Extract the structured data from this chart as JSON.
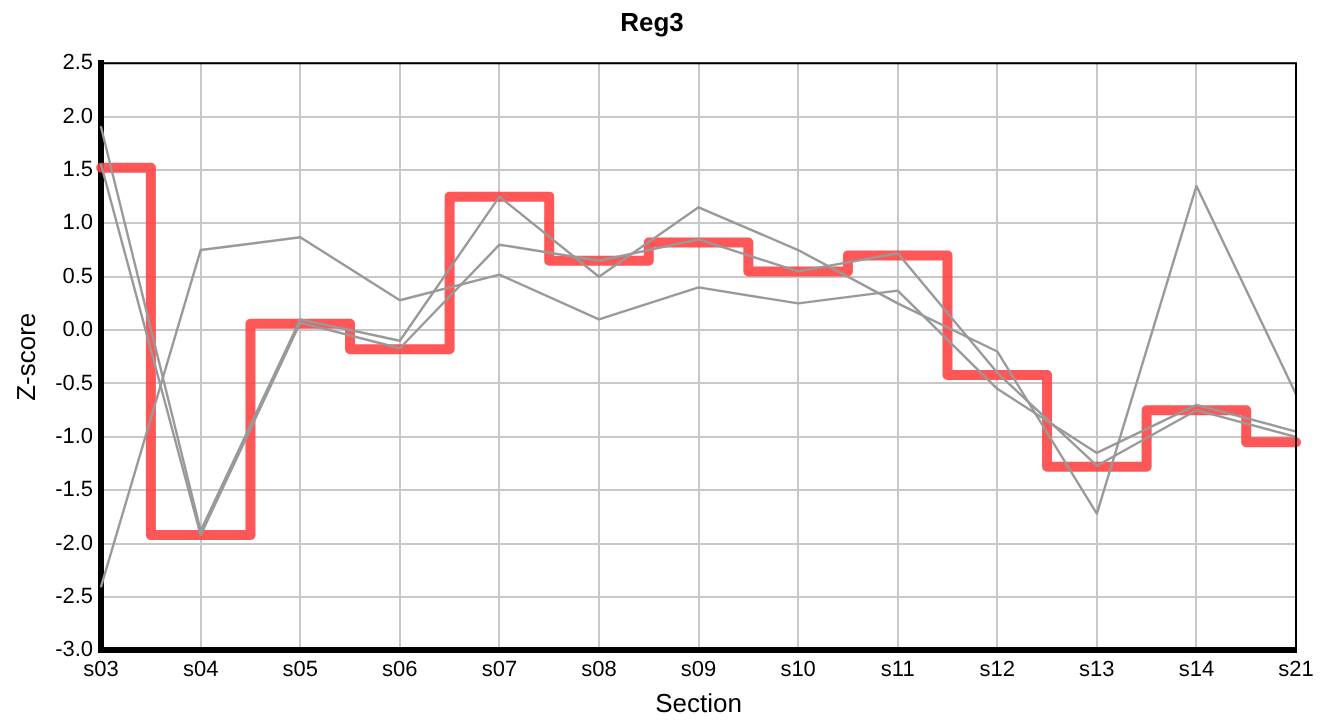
{
  "chart_data": {
    "type": "line",
    "title": "Reg3",
    "xlabel": "Section",
    "ylabel": "Z-score",
    "categories": [
      "s03",
      "s04",
      "s05",
      "s06",
      "s07",
      "s08",
      "s09",
      "s10",
      "s11",
      "s12",
      "s13",
      "s14",
      "s21"
    ],
    "series": [
      {
        "type": "line",
        "color": "#999999",
        "values": [
          -2.4,
          0.75,
          0.87,
          0.28,
          0.52,
          0.1,
          0.4,
          0.25,
          0.37,
          -0.55,
          -1.15,
          -0.7,
          -0.95
        ]
      },
      {
        "type": "line",
        "color": "#999999",
        "values": [
          1.9,
          -1.88,
          0.1,
          -0.1,
          1.25,
          0.5,
          1.15,
          0.75,
          0.25,
          -0.2,
          -1.72,
          1.35,
          -0.6
        ]
      },
      {
        "type": "line",
        "color": "#999999",
        "values": [
          1.55,
          -1.92,
          0.07,
          -0.17,
          0.8,
          0.65,
          0.85,
          0.55,
          0.72,
          -0.4,
          -1.27,
          -0.75,
          -1.0
        ]
      },
      {
        "type": "step",
        "color": "#ff4040",
        "values": [
          1.52,
          -1.92,
          0.06,
          -0.18,
          1.25,
          0.65,
          0.82,
          0.55,
          0.7,
          -0.42,
          -1.28,
          -0.75,
          -1.05
        ]
      }
    ],
    "ylim": [
      -3,
      2.5
    ],
    "yticks": [
      {
        "value": -3,
        "label": "-3.0"
      },
      -2.5,
      {
        "value": -2,
        "label": "-2.0"
      },
      -1.5,
      {
        "value": -1,
        "label": "-1.0"
      },
      -0.5,
      {
        "value": 0,
        "label": "0.0"
      },
      0.5,
      {
        "value": 1,
        "label": "1.0"
      },
      1.5,
      {
        "value": 2,
        "label": "2.0"
      },
      2.5
    ],
    "grid": true,
    "legend": false,
    "marker": "none",
    "line_style": "solid"
  }
}
